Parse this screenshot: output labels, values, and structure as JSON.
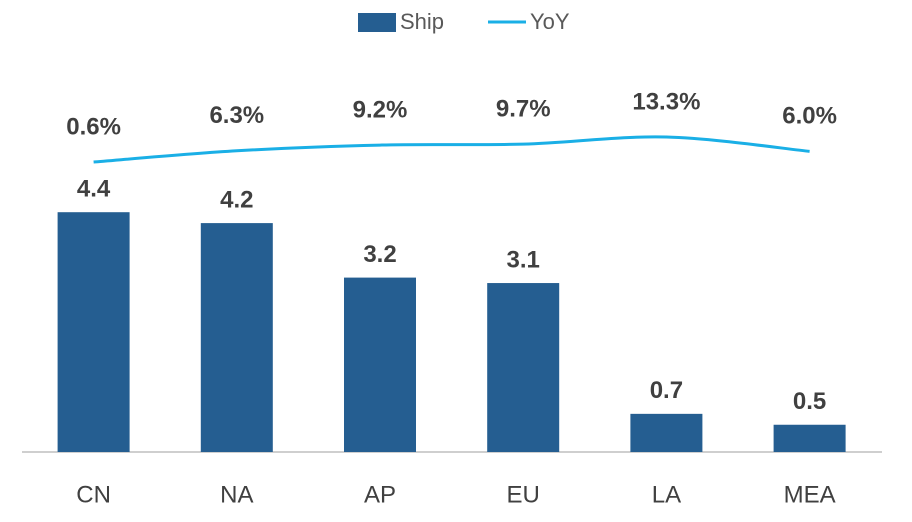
{
  "chart_data": {
    "type": "combo",
    "categories": [
      "CN",
      "NA",
      "AP",
      "EU",
      "LA",
      "MEA"
    ],
    "series": [
      {
        "name": "Ship",
        "type": "bar",
        "color": "#255e91",
        "values": [
          4.4,
          4.2,
          3.2,
          3.1,
          0.7,
          0.5
        ]
      },
      {
        "name": "YoY",
        "type": "line",
        "axis": "y2",
        "color": "#1aafe6",
        "values": [
          0.6,
          6.3,
          9.2,
          9.7,
          13.3,
          6.0
        ],
        "value_labels": [
          "0.6%",
          "6.3%",
          "9.2%",
          "9.7%",
          "13.3%",
          "6.0%"
        ]
      }
    ]
  }
}
